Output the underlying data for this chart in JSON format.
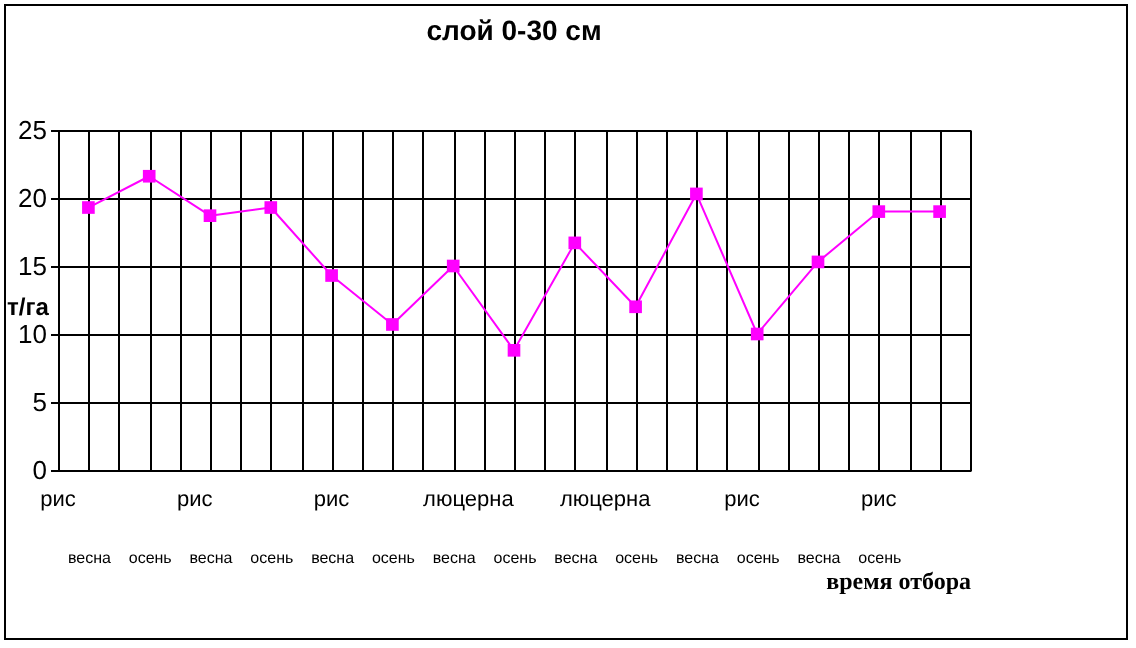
{
  "chart_data": {
    "type": "line",
    "title": "слой 0-30 см",
    "xlabel": "время отбора",
    "ylabel": "т/га",
    "categories": [
      "весна",
      "осень",
      "весна",
      "осень",
      "весна",
      "осень",
      "весна",
      "осень",
      "весна",
      "осень",
      "весна",
      "осень",
      "весна",
      "осень",
      null
    ],
    "series": [
      {
        "color": "#ff00ff",
        "values": [
          19.3,
          21.6,
          18.7,
          19.3,
          14.3,
          10.7,
          15.0,
          8.8,
          16.7,
          12.0,
          20.3,
          10.0,
          15.3,
          19.0,
          19.0
        ]
      }
    ],
    "ylim": [
      0,
      25
    ],
    "yticks": [
      0,
      5,
      10,
      15,
      20,
      25
    ],
    "grid": true,
    "marker": "square",
    "line_style": "solid",
    "legend": false,
    "annotations": [
      "рис",
      "рис",
      "рис",
      "люцерна",
      "люцерна",
      "рис",
      "рис"
    ]
  }
}
